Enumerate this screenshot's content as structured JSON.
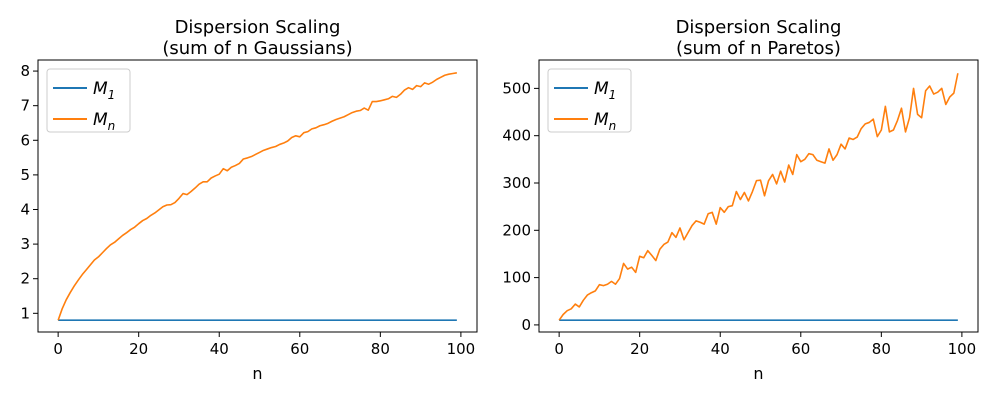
{
  "chart_data": [
    {
      "type": "line",
      "title_lines": [
        "Dispersion Scaling",
        "(sum of n Gaussians)"
      ],
      "xlabel": "n",
      "ylabel": "",
      "xlim": [
        -5,
        104
      ],
      "ylim": [
        0.46,
        8.32
      ],
      "xticks": [
        "0",
        "20",
        "40",
        "60",
        "80",
        "100"
      ],
      "yticks": [
        "1",
        "2",
        "3",
        "4",
        "5",
        "6",
        "7",
        "8"
      ],
      "grid": false,
      "legend": "upper-left",
      "series": [
        {
          "name": "M",
          "sub": "1",
          "color": "#1f77b4",
          "x": [
            0,
            99
          ],
          "y": [
            0.8,
            0.8
          ]
        },
        {
          "name": "M",
          "sub": "n",
          "color": "#ff7f0e",
          "x": [
            0,
            1,
            2,
            3,
            4,
            5,
            6,
            7,
            8,
            9,
            10,
            11,
            12,
            13,
            14,
            15,
            16,
            17,
            18,
            19,
            20,
            21,
            22,
            23,
            24,
            25,
            26,
            27,
            28,
            29,
            30,
            31,
            32,
            33,
            34,
            35,
            36,
            37,
            38,
            39,
            40,
            41,
            42,
            43,
            44,
            45,
            46,
            47,
            48,
            49,
            50,
            51,
            52,
            53,
            54,
            55,
            56,
            57,
            58,
            59,
            60,
            61,
            62,
            63,
            64,
            65,
            66,
            67,
            68,
            69,
            70,
            71,
            72,
            73,
            74,
            75,
            76,
            77,
            78,
            79,
            80,
            81,
            82,
            83,
            84,
            85,
            86,
            87,
            88,
            89,
            90,
            91,
            92,
            93,
            94,
            95,
            96,
            97,
            98,
            99
          ],
          "y": [
            0.8,
            1.13,
            1.39,
            1.6,
            1.79,
            1.96,
            2.12,
            2.26,
            2.4,
            2.54,
            2.63,
            2.75,
            2.87,
            2.98,
            3.05,
            3.15,
            3.25,
            3.33,
            3.42,
            3.49,
            3.59,
            3.68,
            3.74,
            3.83,
            3.9,
            3.99,
            4.08,
            4.13,
            4.14,
            4.2,
            4.32,
            4.46,
            4.43,
            4.52,
            4.62,
            4.73,
            4.8,
            4.8,
            4.91,
            4.97,
            5.02,
            5.18,
            5.12,
            5.22,
            5.27,
            5.33,
            5.46,
            5.49,
            5.53,
            5.59,
            5.65,
            5.71,
            5.75,
            5.79,
            5.82,
            5.88,
            5.92,
            5.98,
            6.08,
            6.13,
            6.1,
            6.22,
            6.25,
            6.33,
            6.36,
            6.42,
            6.45,
            6.49,
            6.55,
            6.6,
            6.64,
            6.68,
            6.74,
            6.8,
            6.84,
            6.86,
            6.93,
            6.87,
            7.12,
            7.12,
            7.14,
            7.17,
            7.2,
            7.27,
            7.24,
            7.33,
            7.45,
            7.52,
            7.47,
            7.58,
            7.55,
            7.66,
            7.62,
            7.68,
            7.76,
            7.82,
            7.88,
            7.91,
            7.93,
            7.95
          ]
        }
      ]
    },
    {
      "type": "line",
      "title_lines": [
        "Dispersion Scaling",
        "(sum of n Paretos)"
      ],
      "xlabel": "n",
      "ylabel": "",
      "xlim": [
        -5,
        104
      ],
      "ylim": [
        -15,
        560
      ],
      "xticks": [
        "0",
        "20",
        "40",
        "60",
        "80",
        "100"
      ],
      "yticks": [
        "0",
        "100",
        "200",
        "300",
        "400",
        "500"
      ],
      "grid": false,
      "legend": "upper-left",
      "series": [
        {
          "name": "M",
          "sub": "1",
          "color": "#1f77b4",
          "x": [
            0,
            99
          ],
          "y": [
            10,
            10
          ]
        },
        {
          "name": "M",
          "sub": "n",
          "color": "#ff7f0e",
          "x": [
            0,
            1,
            2,
            3,
            4,
            5,
            6,
            7,
            8,
            9,
            10,
            11,
            12,
            13,
            14,
            15,
            16,
            17,
            18,
            19,
            20,
            21,
            22,
            23,
            24,
            25,
            26,
            27,
            28,
            29,
            30,
            31,
            32,
            33,
            34,
            35,
            36,
            37,
            38,
            39,
            40,
            41,
            42,
            43,
            44,
            45,
            46,
            47,
            48,
            49,
            50,
            51,
            52,
            53,
            54,
            55,
            56,
            57,
            58,
            59,
            60,
            61,
            62,
            63,
            64,
            65,
            66,
            67,
            68,
            69,
            70,
            71,
            72,
            73,
            74,
            75,
            76,
            77,
            78,
            79,
            80,
            81,
            82,
            83,
            84,
            85,
            86,
            87,
            88,
            89,
            90,
            91,
            92,
            93,
            94,
            95,
            96,
            97,
            98,
            99
          ],
          "y": [
            10,
            22,
            30,
            34,
            44,
            38,
            52,
            63,
            68,
            72,
            85,
            83,
            86,
            92,
            86,
            98,
            130,
            118,
            122,
            111,
            145,
            142,
            157,
            147,
            136,
            160,
            170,
            175,
            195,
            185,
            205,
            180,
            195,
            210,
            220,
            217,
            213,
            235,
            238,
            213,
            248,
            238,
            250,
            252,
            282,
            265,
            280,
            262,
            282,
            305,
            306,
            273,
            305,
            318,
            298,
            325,
            302,
            338,
            318,
            360,
            345,
            350,
            362,
            360,
            348,
            345,
            342,
            372,
            348,
            360,
            382,
            372,
            395,
            392,
            397,
            415,
            425,
            428,
            435,
            398,
            412,
            462,
            408,
            412,
            432,
            458,
            408,
            438,
            500,
            445,
            438,
            495,
            505,
            488,
            492,
            500,
            466,
            482,
            490,
            532
          ]
        }
      ]
    }
  ]
}
